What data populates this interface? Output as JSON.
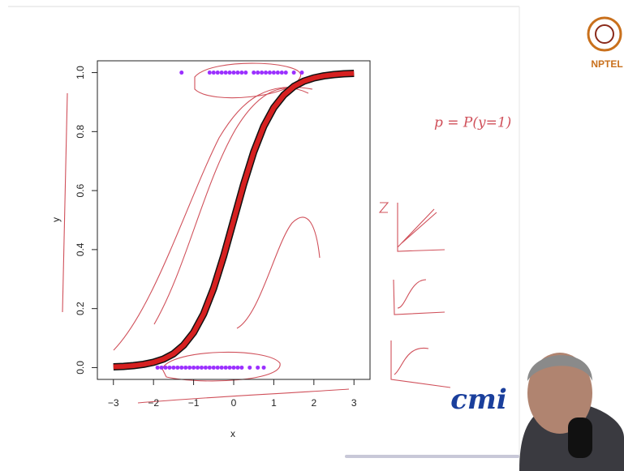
{
  "chart_data": {
    "type": "scatter",
    "xlabel": "x",
    "ylabel": "y",
    "xlim": [
      -3.4,
      3.4
    ],
    "ylim": [
      -0.04,
      1.04
    ],
    "xticks": [
      {
        "value": -3,
        "label": "−3"
      },
      {
        "value": -2,
        "label": "−2"
      },
      {
        "value": -1,
        "label": "−1"
      },
      0,
      1,
      2,
      3
    ],
    "yticks": [
      {
        "value": 0,
        "label": "0.0"
      },
      0.2,
      0.4,
      0.6,
      0.8,
      {
        "value": 1,
        "label": "1.0"
      }
    ],
    "series": [
      {
        "color": "#9b30ff",
        "x": [
          -1.3,
          -0.6,
          -0.5,
          -0.4,
          -0.3,
          -0.2,
          -0.1,
          0,
          0.1,
          0.2,
          0.3,
          0.5,
          0.6,
          0.7,
          0.8,
          0.9,
          1.0,
          1.1,
          1.2,
          1.3,
          1.5,
          1.7
        ],
        "values": [
          1,
          1,
          1,
          1,
          1,
          1,
          1,
          1,
          1,
          1,
          1,
          1,
          1,
          1,
          1,
          1,
          1,
          1,
          1,
          1,
          1,
          1
        ]
      },
      {
        "color": "#9b30ff",
        "x": [
          -1.9,
          -1.8,
          -1.7,
          -1.6,
          -1.5,
          -1.4,
          -1.3,
          -1.2,
          -1.1,
          -1.0,
          -0.9,
          -0.8,
          -0.7,
          -0.6,
          -0.5,
          -0.4,
          -0.3,
          -0.2,
          -0.1,
          0,
          0.1,
          0.2,
          0.4,
          0.6,
          0.75
        ],
        "values": [
          0,
          0,
          0,
          0,
          0,
          0,
          0,
          0,
          0,
          0,
          0,
          0,
          0,
          0,
          0,
          0,
          0,
          0,
          0,
          0,
          0,
          0,
          0,
          0,
          0
        ]
      },
      {
        "color": "#d62020",
        "line": true,
        "x": [
          -3,
          -2.75,
          -2.5,
          -2.25,
          -2,
          -1.75,
          -1.5,
          -1.25,
          -1,
          -0.75,
          -0.5,
          -0.25,
          0,
          0.25,
          0.5,
          0.75,
          1,
          1.25,
          1.5,
          1.75,
          2,
          2.25,
          2.5,
          2.75,
          3
        ],
        "values": [
          0.0025,
          0.0041,
          0.0067,
          0.011,
          0.018,
          0.029,
          0.047,
          0.076,
          0.119,
          0.182,
          0.269,
          0.378,
          0.5,
          0.622,
          0.731,
          0.818,
          0.881,
          0.924,
          0.953,
          0.971,
          0.982,
          0.989,
          0.9933,
          0.9959,
          0.9975
        ]
      }
    ]
  },
  "annotations": [
    "p = P(y=1)"
  ],
  "logos": {
    "top": "NPTEL",
    "bottom": "cmi"
  }
}
